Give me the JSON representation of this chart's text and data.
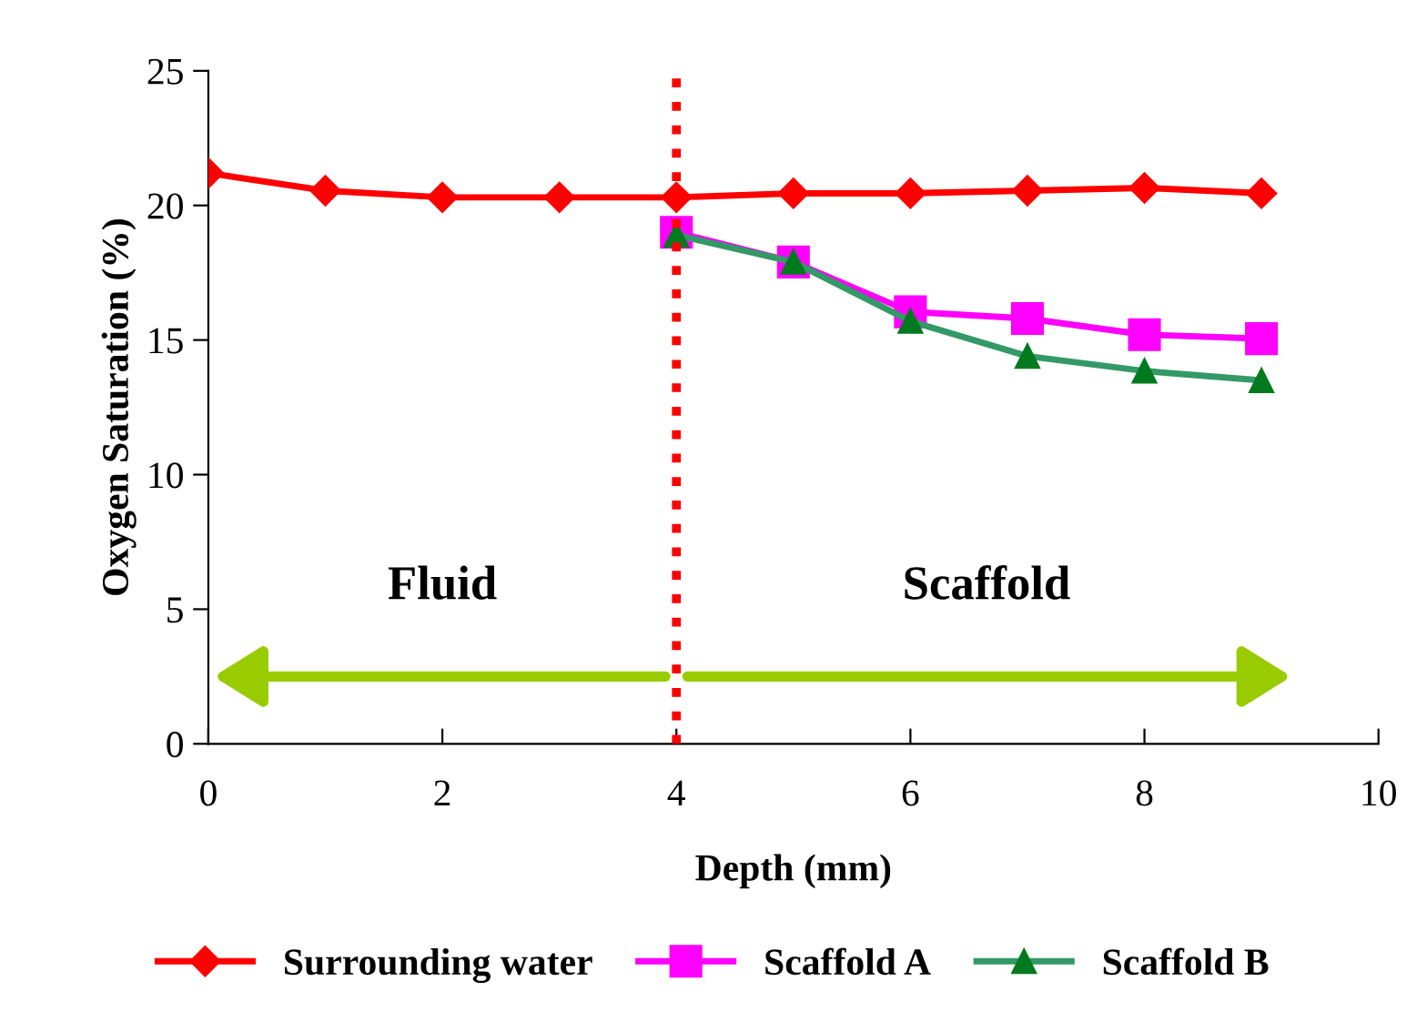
{
  "chart_data": {
    "type": "line",
    "xlabel": "Depth (mm)",
    "ylabel": "Oxygen Saturation (%)",
    "xlim": [
      0,
      10
    ],
    "xticks": [
      0,
      2,
      4,
      6,
      8,
      10
    ],
    "ylim": [
      0,
      25
    ],
    "yticks": [
      0,
      5,
      10,
      15,
      20,
      25
    ],
    "grid": false,
    "legend": "bottom",
    "ref_lines": [
      {
        "axis": "x",
        "value": 4,
        "color": "#ff0000",
        "line_style": "dotted"
      }
    ],
    "annotations": [
      "Fluid",
      "Scaffold"
    ],
    "series": [
      {
        "name": "Surrounding water",
        "color": "#ff0000",
        "marker": "diamond",
        "x": [
          0,
          1,
          2,
          3,
          4,
          5,
          6,
          7,
          8,
          9
        ],
        "values": [
          21.2,
          20.55,
          20.3,
          20.3,
          20.3,
          20.45,
          20.45,
          20.55,
          20.65,
          20.45
        ]
      },
      {
        "name": "Scaffold A",
        "color": "#ff00ff",
        "marker": "square",
        "x": [
          4,
          5,
          6,
          7,
          8,
          9
        ],
        "values": [
          19.0,
          17.9,
          16.05,
          15.8,
          15.2,
          15.05
        ]
      },
      {
        "name": "Scaffold B",
        "color": "#339966",
        "marker": "triangle",
        "x": [
          4,
          5,
          6,
          7,
          8,
          9
        ],
        "values": [
          18.9,
          17.9,
          15.7,
          14.4,
          13.85,
          13.5
        ]
      }
    ]
  }
}
